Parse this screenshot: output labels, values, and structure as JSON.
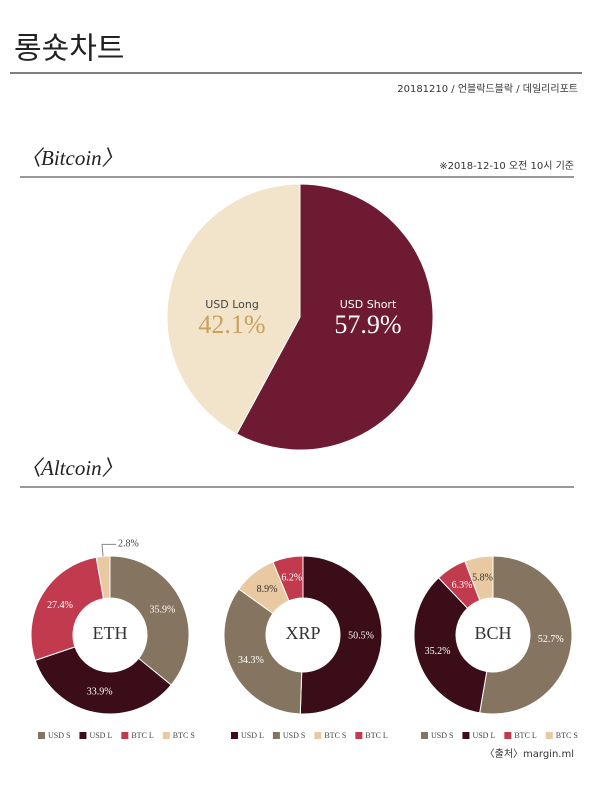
{
  "header": {
    "title": "롱숏차트",
    "byline": "20181210 / 언블락드블락 / 데일리리포트"
  },
  "sections": [
    {
      "title": "〈Bitcoin〉",
      "note": "※2018-12-10 오전 10시 기준"
    },
    {
      "title": "〈Altcoin〉"
    }
  ],
  "source": "〈출처〉margin.ml",
  "chart_data": [
    {
      "type": "pie",
      "categories": [
        "USD Short",
        "USD Long"
      ],
      "values": [
        57.9,
        42.1
      ],
      "value_labels": [
        "57.9%",
        "42.1%"
      ],
      "colors": [
        "#6e1a33",
        "#f2e3cb"
      ]
    },
    {
      "type": "donut",
      "title": "ETH",
      "categories": [
        "USD S",
        "USD L",
        "BTC L",
        "BTC S"
      ],
      "values": [
        35.9,
        33.9,
        27.4,
        2.8
      ],
      "value_labels": [
        "35.9%",
        "33.9%",
        "27.4%",
        "2.8%"
      ],
      "colors": [
        "#857560",
        "#3a0d18",
        "#c23a4e",
        "#e9c9a1"
      ]
    },
    {
      "type": "donut",
      "title": "XRP",
      "categories": [
        "USD L",
        "USD S",
        "BTC S",
        "BTC L"
      ],
      "values": [
        50.5,
        34.3,
        8.9,
        6.2
      ],
      "value_labels": [
        "50.5%",
        "34.3%",
        "8.9%",
        "6.2%"
      ],
      "colors": [
        "#3a0d18",
        "#857560",
        "#e9c9a1",
        "#c23a4e"
      ]
    },
    {
      "type": "donut",
      "title": "BCH",
      "categories": [
        "USD S",
        "USD L",
        "BTC L",
        "BTC S"
      ],
      "values": [
        52.7,
        35.2,
        6.3,
        5.8
      ],
      "value_labels": [
        "52.7%",
        "35.2%",
        "6.3%",
        "5.8%"
      ],
      "colors": [
        "#857560",
        "#3a0d18",
        "#c23a4e",
        "#e9c9a1"
      ]
    }
  ]
}
